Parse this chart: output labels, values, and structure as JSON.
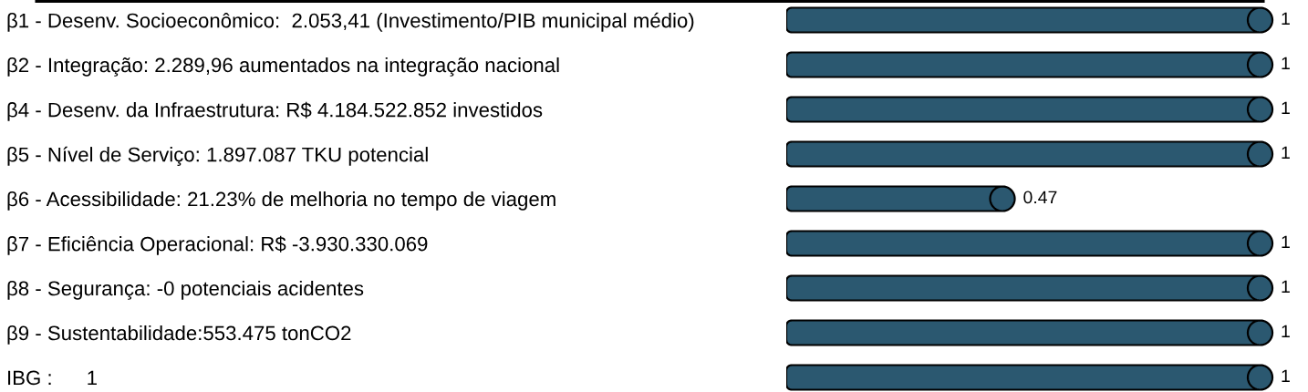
{
  "chart_data": {
    "type": "bar",
    "orientation": "horizontal",
    "categories": [
      "β1 - Desenv. Socioeconômico:  2.053,41 (Investimento/PIB municipal médio)",
      "β2 - Integração: 2.289,96 aumentados na integração nacional",
      "β4 - Desenv. da Infraestrutura: R$ 4.184.522.852 investidos",
      "β5 - Nível de Serviço: 1.897.087 TKU potencial",
      "β6 - Acessibilidade: 21.23% de melhoria no tempo de viagem",
      "β7 - Eficiência Operacional: R$ -3.930.330.069",
      "β8 - Segurança: -0 potenciais acidentes",
      "β9 - Sustentabilidade:553.475 tonCO2",
      "IBG :      1"
    ],
    "values": [
      1,
      1,
      1,
      1,
      0.47,
      1,
      1,
      1,
      1
    ],
    "color": "#2b5870",
    "data_labels": true,
    "tick_labels": "y"
  }
}
